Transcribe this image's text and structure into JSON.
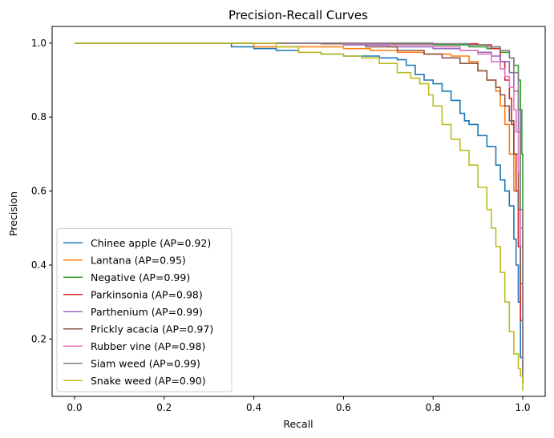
{
  "chart_data": {
    "type": "line",
    "title": "Precision-Recall Curves",
    "xlabel": "Recall",
    "ylabel": "Precision",
    "xlim": [
      -0.05,
      1.05
    ],
    "ylim": [
      0.045,
      1.045
    ],
    "xticks": [
      "0.0",
      "0.2",
      "0.4",
      "0.6",
      "0.8",
      "1.0"
    ],
    "yticks": [
      "0.2",
      "0.4",
      "0.6",
      "0.8",
      "1.0"
    ],
    "grid": false,
    "legend_position": "lower-left",
    "series": [
      {
        "name": "Chinee apple (AP=0.92)",
        "color": "#1f77b4",
        "x": [
          0.0,
          0.32,
          0.35,
          0.4,
          0.45,
          0.5,
          0.55,
          0.6,
          0.64,
          0.68,
          0.72,
          0.74,
          0.76,
          0.78,
          0.8,
          0.82,
          0.84,
          0.86,
          0.87,
          0.88,
          0.9,
          0.92,
          0.94,
          0.95,
          0.96,
          0.97,
          0.98,
          0.985,
          0.99,
          0.995,
          1.0
        ],
        "y": [
          1.0,
          1.0,
          0.99,
          0.985,
          0.98,
          0.975,
          0.97,
          0.965,
          0.965,
          0.96,
          0.955,
          0.94,
          0.915,
          0.9,
          0.89,
          0.87,
          0.845,
          0.81,
          0.79,
          0.78,
          0.75,
          0.72,
          0.67,
          0.63,
          0.6,
          0.56,
          0.47,
          0.4,
          0.3,
          0.15,
          0.08
        ]
      },
      {
        "name": "Lantana (AP=0.95)",
        "color": "#ff7f0e",
        "x": [
          0.0,
          0.39,
          0.4,
          0.5,
          0.6,
          0.66,
          0.72,
          0.78,
          0.84,
          0.88,
          0.9,
          0.92,
          0.94,
          0.95,
          0.96,
          0.97,
          0.98,
          0.99,
          0.995,
          1.0
        ],
        "y": [
          1.0,
          1.0,
          0.99,
          0.99,
          0.985,
          0.98,
          0.975,
          0.97,
          0.965,
          0.95,
          0.925,
          0.9,
          0.87,
          0.83,
          0.78,
          0.7,
          0.6,
          0.45,
          0.25,
          0.08
        ]
      },
      {
        "name": "Negative (AP=0.99)",
        "color": "#2ca02c",
        "x": [
          0.0,
          0.6,
          0.7,
          0.8,
          0.88,
          0.92,
          0.95,
          0.97,
          0.98,
          0.99,
          0.995,
          0.998,
          1.0
        ],
        "y": [
          1.0,
          1.0,
          0.998,
          0.995,
          0.99,
          0.985,
          0.975,
          0.96,
          0.94,
          0.9,
          0.82,
          0.7,
          0.08
        ]
      },
      {
        "name": "Parkinsonia (AP=0.98)",
        "color": "#d62728",
        "x": [
          0.0,
          0.8,
          0.9,
          0.93,
          0.95,
          0.96,
          0.97,
          0.975,
          0.98,
          0.985,
          0.99,
          0.995,
          1.0
        ],
        "y": [
          1.0,
          0.998,
          0.995,
          0.985,
          0.95,
          0.9,
          0.85,
          0.78,
          0.7,
          0.6,
          0.45,
          0.25,
          0.08
        ]
      },
      {
        "name": "Parthenium (AP=0.99)",
        "color": "#9467bd",
        "x": [
          0.0,
          0.5,
          0.6,
          0.7,
          0.8,
          0.86,
          0.9,
          0.93,
          0.95,
          0.97,
          0.98,
          0.99,
          0.995,
          1.0
        ],
        "y": [
          1.0,
          1.0,
          0.995,
          0.99,
          0.985,
          0.98,
          0.975,
          0.965,
          0.95,
          0.92,
          0.87,
          0.76,
          0.5,
          0.08
        ]
      },
      {
        "name": "Prickly acacia (AP=0.97)",
        "color": "#8c564b",
        "x": [
          0.0,
          0.55,
          0.65,
          0.72,
          0.78,
          0.82,
          0.86,
          0.9,
          0.92,
          0.94,
          0.95,
          0.96,
          0.97,
          0.98,
          0.99,
          0.995,
          1.0
        ],
        "y": [
          1.0,
          0.998,
          0.99,
          0.98,
          0.97,
          0.96,
          0.945,
          0.925,
          0.9,
          0.88,
          0.86,
          0.83,
          0.79,
          0.7,
          0.55,
          0.35,
          0.08
        ]
      },
      {
        "name": "Rubber vine (AP=0.98)",
        "color": "#e377c2",
        "x": [
          0.0,
          0.6,
          0.7,
          0.8,
          0.86,
          0.9,
          0.93,
          0.95,
          0.96,
          0.97,
          0.98,
          0.985,
          0.99,
          0.995,
          1.0
        ],
        "y": [
          1.0,
          0.998,
          0.995,
          0.99,
          0.98,
          0.97,
          0.95,
          0.93,
          0.91,
          0.88,
          0.82,
          0.76,
          0.65,
          0.45,
          0.08
        ]
      },
      {
        "name": "Siam weed (AP=0.99)",
        "color": "#7f7f7f",
        "x": [
          0.0,
          0.72,
          0.8,
          0.88,
          0.92,
          0.95,
          0.97,
          0.98,
          0.99,
          0.995,
          1.0
        ],
        "y": [
          1.0,
          1.0,
          0.998,
          0.995,
          0.99,
          0.98,
          0.96,
          0.92,
          0.82,
          0.55,
          0.08
        ]
      },
      {
        "name": "Snake weed (AP=0.90)",
        "color": "#bcbd22",
        "x": [
          0.0,
          0.4,
          0.45,
          0.5,
          0.55,
          0.6,
          0.64,
          0.68,
          0.72,
          0.75,
          0.77,
          0.79,
          0.8,
          0.82,
          0.84,
          0.86,
          0.88,
          0.9,
          0.92,
          0.93,
          0.94,
          0.95,
          0.96,
          0.97,
          0.98,
          0.99,
          0.995,
          1.0
        ],
        "y": [
          1.0,
          1.0,
          0.99,
          0.975,
          0.97,
          0.965,
          0.96,
          0.945,
          0.92,
          0.905,
          0.89,
          0.86,
          0.83,
          0.78,
          0.74,
          0.71,
          0.67,
          0.61,
          0.55,
          0.5,
          0.45,
          0.38,
          0.3,
          0.22,
          0.16,
          0.12,
          0.1,
          0.06
        ]
      }
    ]
  }
}
